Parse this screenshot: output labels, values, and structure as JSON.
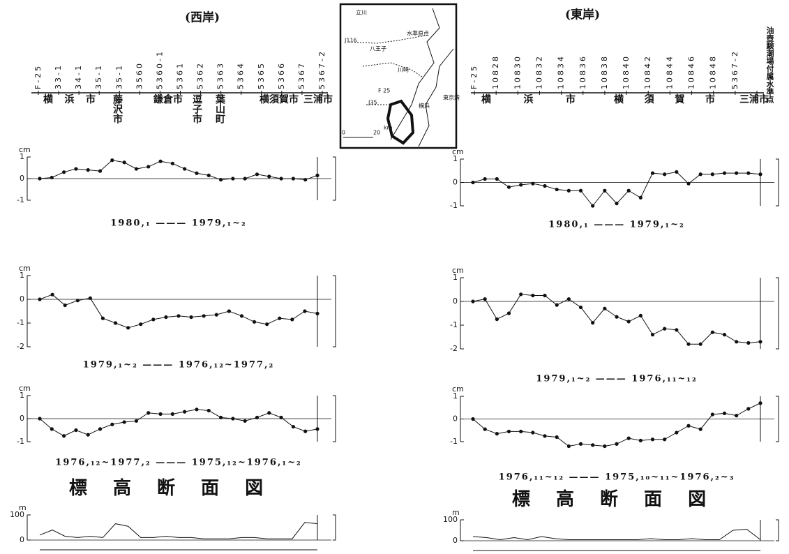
{
  "west": {
    "title": "(西岸)",
    "benchmarks": [
      "F-25",
      "33-1",
      "34-1",
      "35-1",
      "35-1",
      "3560",
      "5360-1",
      "5361",
      "5362",
      "5363",
      "5364",
      "5365",
      "5366",
      "5367",
      "5367-2"
    ],
    "cities": [
      "横 浜 市",
      "藤沢市",
      "鎌倉市",
      "逗子市",
      "葉山町",
      "横須賀市",
      "三浦市"
    ]
  },
  "east": {
    "title": "(東岸)",
    "benchmarks": [
      "F-25",
      "10828",
      "10830",
      "10832",
      "10834",
      "10836",
      "10838",
      "10840",
      "10842",
      "10844",
      "10846",
      "10848",
      "5367-2",
      "油壺験潮場付属水準点"
    ],
    "cities": [
      "横 浜 市",
      "横 須 賀 市",
      "三浦市"
    ]
  },
  "map": {
    "labels": [
      "立川",
      "八王子",
      "J116",
      "水準原点",
      "川崎",
      "横浜",
      "F 25",
      "J35",
      "0",
      "20",
      "km",
      "東京湾"
    ]
  },
  "chart_data": [
    {
      "type": "line",
      "y_label": "cm",
      "ylim": [
        -1,
        1
      ],
      "yticks": [
        -1,
        0,
        1
      ],
      "caption": "1980,₁ ——— 1979,₁~₂",
      "values": [
        0,
        0.05,
        0.3,
        0.45,
        0.4,
        0.35,
        0.85,
        0.75,
        0.45,
        0.55,
        0.8,
        0.7,
        0.45,
        0.25,
        0.15,
        -0.05,
        0,
        0,
        0.2,
        0.1,
        0,
        0,
        -0.05,
        0.15
      ]
    },
    {
      "type": "line",
      "y_label": "cm",
      "ylim": [
        -2,
        1
      ],
      "yticks": [
        -2,
        -1,
        0,
        1
      ],
      "caption": "1979,₁~₂ ——— 1976,₁₂~1977,₂",
      "values": [
        0,
        0.2,
        -0.25,
        -0.05,
        0.05,
        -0.8,
        -1.0,
        -1.2,
        -1.05,
        -0.85,
        -0.75,
        -0.7,
        -0.75,
        -0.7,
        -0.65,
        -0.5,
        -0.7,
        -0.95,
        -1.05,
        -0.8,
        -0.85,
        -0.5,
        -0.6
      ]
    },
    {
      "type": "line",
      "y_label": "cm",
      "ylim": [
        -1,
        1
      ],
      "yticks": [
        -1,
        0,
        1
      ],
      "caption": "1976,₁₂~1977,₂ ——— 1975,₁₂~1976,₁~₂",
      "values": [
        0,
        -0.45,
        -0.75,
        -0.5,
        -0.7,
        -0.45,
        -0.25,
        -0.15,
        -0.1,
        0.25,
        0.2,
        0.2,
        0.3,
        0.4,
        0.35,
        0.05,
        0,
        -0.1,
        0.05,
        0.25,
        0.05,
        -0.35,
        -0.55,
        -0.45
      ]
    },
    {
      "type": "line",
      "y_label": "m",
      "title": "標 高 断 面 図",
      "ylim": [
        0,
        100
      ],
      "yticks": [
        0,
        100
      ],
      "markers": false,
      "values": [
        20,
        40,
        15,
        10,
        15,
        10,
        65,
        55,
        10,
        10,
        15,
        10,
        10,
        5,
        5,
        5,
        10,
        10,
        5,
        5,
        5,
        70,
        65
      ]
    },
    {
      "type": "line",
      "y_label": "cm",
      "ylim": [
        -1,
        1
      ],
      "yticks": [
        -1,
        0,
        1
      ],
      "caption": "1980,₁ ——— 1979,₁~₂",
      "values": [
        0,
        0.15,
        0.15,
        -0.2,
        -0.1,
        -0.05,
        -0.15,
        -0.3,
        -0.35,
        -0.35,
        -1.0,
        -0.35,
        -0.9,
        -0.35,
        -0.65,
        0.4,
        0.35,
        0.45,
        -0.05,
        0.35,
        0.35,
        0.4,
        0.4,
        0.4,
        0.35
      ]
    },
    {
      "type": "line",
      "y_label": "cm",
      "ylim": [
        -2,
        1
      ],
      "yticks": [
        -2,
        -1,
        0,
        1
      ],
      "caption": "1979,₁~₂ ——— 1976,₁₁~₁₂",
      "values": [
        0,
        0.1,
        -0.75,
        -0.5,
        0.3,
        0.25,
        0.25,
        -0.15,
        0.1,
        -0.25,
        -0.9,
        -0.3,
        -0.65,
        -0.85,
        -0.6,
        -1.4,
        -1.15,
        -1.2,
        -1.8,
        -1.8,
        -1.3,
        -1.4,
        -1.7,
        -1.75,
        -1.7
      ]
    },
    {
      "type": "line",
      "y_label": "cm",
      "ylim": [
        -1,
        1
      ],
      "yticks": [
        -1,
        0,
        1
      ],
      "caption": "1976,₁₁~₁₂ ——— 1975,₁₀~₁₁~1976,₂~₃",
      "values": [
        0,
        -0.45,
        -0.65,
        -0.55,
        -0.55,
        -0.6,
        -0.75,
        -0.8,
        -1.2,
        -1.1,
        -1.15,
        -1.2,
        -1.1,
        -0.85,
        -0.95,
        -0.9,
        -0.9,
        -0.6,
        -0.3,
        -0.45,
        0.2,
        0.25,
        0.15,
        0.45,
        0.7
      ]
    },
    {
      "type": "line",
      "y_label": "m",
      "title": "標 高 断 面 図",
      "ylim": [
        0,
        100
      ],
      "yticks": [
        0,
        100
      ],
      "markers": false,
      "values": [
        20,
        15,
        5,
        15,
        5,
        20,
        10,
        5,
        5,
        5,
        5,
        5,
        5,
        10,
        5,
        5,
        10,
        5,
        5,
        50,
        55,
        5
      ]
    }
  ]
}
